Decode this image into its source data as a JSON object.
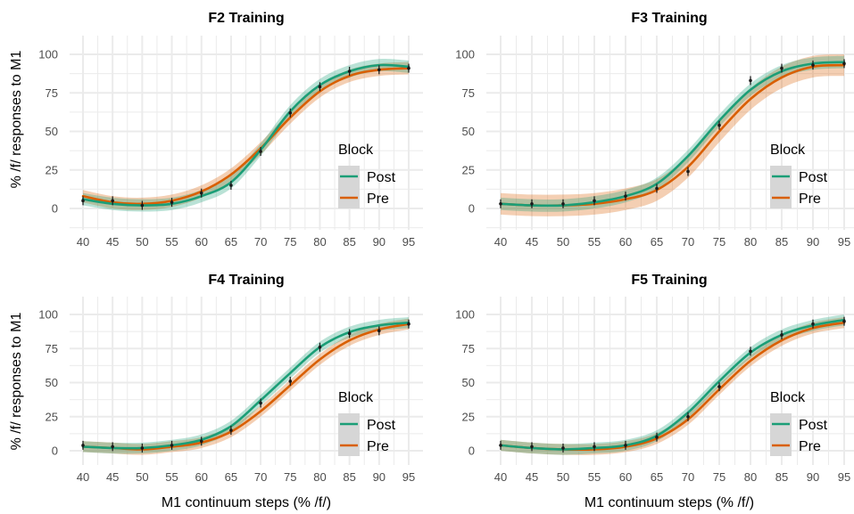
{
  "figure": {
    "xlabel": "M1 continuum steps (% /f/)",
    "ylabel": "% /f/ responses to M1",
    "legend_title": "Block",
    "legend_placement": "right-inside, lower half of each panel",
    "colors": {
      "Post": "#1b9e77",
      "Pre": "#d95f02",
      "grid": "#ebebeb",
      "points": "#1a1a1a"
    },
    "grid": true
  },
  "chart_data": [
    {
      "type": "line",
      "title": "F2 Training",
      "x": [
        40,
        45,
        50,
        55,
        60,
        65,
        70,
        75,
        80,
        85,
        90,
        95
      ],
      "xlim": [
        37,
        98
      ],
      "ylim": [
        -10,
        110
      ],
      "yticks": [
        0,
        25,
        50,
        75,
        100
      ],
      "series": [
        {
          "name": "Post",
          "values": [
            6,
            3,
            2,
            3,
            8,
            17,
            38,
            63,
            80,
            89,
            93,
            92
          ],
          "band": 4
        },
        {
          "name": "Pre",
          "values": [
            8,
            4,
            3,
            5,
            11,
            22,
            39,
            59,
            76,
            86,
            90,
            91
          ],
          "band": 4
        }
      ],
      "points": [
        {
          "x": 40,
          "y": 5
        },
        {
          "x": 45,
          "y": 5
        },
        {
          "x": 50,
          "y": 2
        },
        {
          "x": 55,
          "y": 4
        },
        {
          "x": 60,
          "y": 10
        },
        {
          "x": 65,
          "y": 15
        },
        {
          "x": 70,
          "y": 37
        },
        {
          "x": 75,
          "y": 62
        },
        {
          "x": 80,
          "y": 79
        },
        {
          "x": 85,
          "y": 89
        },
        {
          "x": 90,
          "y": 90
        },
        {
          "x": 95,
          "y": 91
        }
      ]
    },
    {
      "type": "line",
      "title": "F3 Training",
      "x": [
        40,
        45,
        50,
        55,
        60,
        65,
        70,
        75,
        80,
        85,
        90,
        95
      ],
      "xlim": [
        37,
        98
      ],
      "ylim": [
        -10,
        110
      ],
      "yticks": [
        0,
        25,
        50,
        75,
        100
      ],
      "series": [
        {
          "name": "Post",
          "values": [
            3,
            2,
            2,
            4,
            8,
            16,
            34,
            57,
            77,
            89,
            94,
            95
          ],
          "band": 4
        },
        {
          "name": "Pre",
          "values": [
            3,
            2,
            2,
            3,
            6,
            12,
            27,
            50,
            71,
            85,
            92,
            93
          ],
          "band": 7
        }
      ],
      "points": [
        {
          "x": 40,
          "y": 3
        },
        {
          "x": 45,
          "y": 3
        },
        {
          "x": 50,
          "y": 3
        },
        {
          "x": 55,
          "y": 5
        },
        {
          "x": 60,
          "y": 8
        },
        {
          "x": 65,
          "y": 13
        },
        {
          "x": 70,
          "y": 24
        },
        {
          "x": 75,
          "y": 54
        },
        {
          "x": 80,
          "y": 83
        },
        {
          "x": 85,
          "y": 91
        },
        {
          "x": 90,
          "y": 93
        },
        {
          "x": 95,
          "y": 94
        }
      ]
    },
    {
      "type": "line",
      "title": "F4 Training",
      "x": [
        40,
        45,
        50,
        55,
        60,
        65,
        70,
        75,
        80,
        85,
        90,
        95
      ],
      "xlim": [
        37,
        98
      ],
      "ylim": [
        -10,
        110
      ],
      "yticks": [
        0,
        25,
        50,
        75,
        100
      ],
      "series": [
        {
          "name": "Post",
          "values": [
            3,
            2,
            2,
            4,
            8,
            18,
            37,
            57,
            76,
            87,
            92,
            94
          ],
          "band": 4
        },
        {
          "name": "Pre",
          "values": [
            3,
            2,
            1,
            3,
            6,
            14,
            29,
            48,
            67,
            81,
            89,
            93
          ],
          "band": 4
        }
      ],
      "points": [
        {
          "x": 40,
          "y": 4
        },
        {
          "x": 45,
          "y": 3
        },
        {
          "x": 50,
          "y": 2
        },
        {
          "x": 55,
          "y": 4
        },
        {
          "x": 60,
          "y": 7
        },
        {
          "x": 65,
          "y": 15
        },
        {
          "x": 70,
          "y": 35
        },
        {
          "x": 75,
          "y": 51
        },
        {
          "x": 80,
          "y": 76
        },
        {
          "x": 85,
          "y": 86
        },
        {
          "x": 90,
          "y": 88
        },
        {
          "x": 95,
          "y": 93
        }
      ]
    },
    {
      "type": "line",
      "title": "F5 Training",
      "x": [
        40,
        45,
        50,
        55,
        60,
        65,
        70,
        75,
        80,
        85,
        90,
        95
      ],
      "xlim": [
        37,
        98
      ],
      "ylim": [
        -10,
        110
      ],
      "yticks": [
        0,
        25,
        50,
        75,
        100
      ],
      "series": [
        {
          "name": "Post",
          "values": [
            4,
            2,
            1,
            2,
            4,
            11,
            28,
            51,
            72,
            85,
            92,
            96
          ],
          "band": 4
        },
        {
          "name": "Pre",
          "values": [
            4,
            2,
            1,
            1,
            3,
            9,
            23,
            45,
            66,
            81,
            90,
            94
          ],
          "band": 4
        }
      ],
      "points": [
        {
          "x": 40,
          "y": 4
        },
        {
          "x": 45,
          "y": 3
        },
        {
          "x": 50,
          "y": 2
        },
        {
          "x": 55,
          "y": 3
        },
        {
          "x": 60,
          "y": 4
        },
        {
          "x": 65,
          "y": 10
        },
        {
          "x": 70,
          "y": 25
        },
        {
          "x": 75,
          "y": 47
        },
        {
          "x": 80,
          "y": 73
        },
        {
          "x": 85,
          "y": 85
        },
        {
          "x": 90,
          "y": 93
        },
        {
          "x": 95,
          "y": 95
        }
      ]
    }
  ]
}
